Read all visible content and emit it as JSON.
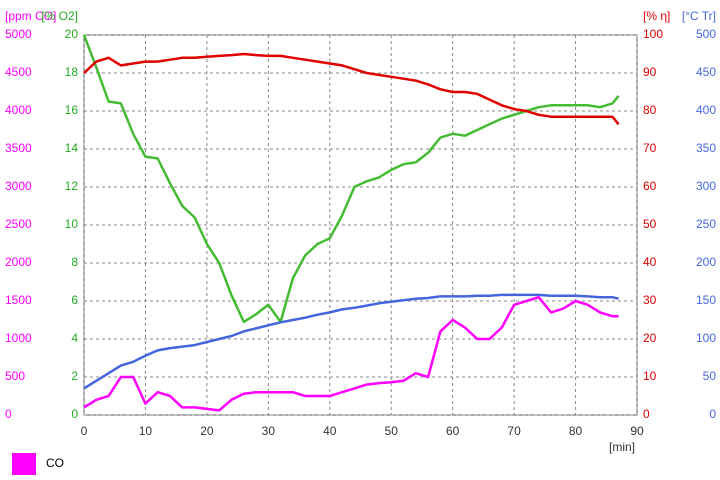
{
  "chart_data": {
    "type": "line",
    "x_label": "[min]",
    "xlim": [
      0,
      90
    ],
    "xticks": [
      0,
      10,
      20,
      30,
      40,
      50,
      60,
      70,
      80,
      90
    ],
    "x": [
      0,
      2,
      4,
      6,
      8,
      10,
      12,
      14,
      16,
      18,
      20,
      22,
      24,
      26,
      28,
      30,
      32,
      34,
      36,
      38,
      40,
      42,
      44,
      46,
      48,
      50,
      52,
      54,
      56,
      58,
      60,
      62,
      64,
      66,
      68,
      70,
      72,
      74,
      76,
      78,
      80,
      82,
      84,
      86,
      87
    ],
    "grid": true,
    "axes": [
      {
        "label": "[ppm CO]",
        "color": "#ff00ff",
        "side": "left-outer",
        "lim": [
          0,
          5000
        ],
        "ticks": [
          0,
          500,
          1000,
          1500,
          2000,
          2500,
          3000,
          3500,
          4000,
          4500,
          5000
        ]
      },
      {
        "label": "[% O2]",
        "color": "#22aa22",
        "side": "left-inner",
        "lim": [
          0,
          20
        ],
        "ticks": [
          0,
          2,
          4,
          6,
          8,
          10,
          12,
          14,
          16,
          18,
          20
        ]
      },
      {
        "label": "[% η]",
        "color": "#dd0000",
        "side": "right-inner",
        "lim": [
          0,
          100
        ],
        "ticks": [
          0,
          10,
          20,
          30,
          40,
          50,
          60,
          70,
          80,
          90,
          100
        ]
      },
      {
        "label": "[°C Tr]",
        "color": "#4466dd",
        "side": "right-outer",
        "lim": [
          0,
          500
        ],
        "ticks": [
          0,
          50,
          100,
          150,
          200,
          250,
          300,
          350,
          400,
          450,
          500
        ]
      }
    ],
    "legend": "bottom-left",
    "series": [
      {
        "color": "#44bb33",
        "axis": 1,
        "values": [
          20,
          18.3,
          16.5,
          16.4,
          14.8,
          13.6,
          13.5,
          12.2,
          11.0,
          10.4,
          9.0,
          8.0,
          6.3,
          4.9,
          5.3,
          5.8,
          4.9,
          7.2,
          8.4,
          9.0,
          9.3,
          10.5,
          12.0,
          12.3,
          12.5,
          12.9,
          13.2,
          13.3,
          13.8,
          14.6,
          14.8,
          14.7,
          15.0,
          15.3,
          15.6,
          15.8,
          16.0,
          16.2,
          16.3,
          16.3,
          16.3,
          16.3,
          16.2,
          16.4,
          16.8
        ]
      },
      {
        "color": "#e00000",
        "axis": 2,
        "values": [
          90,
          93,
          94,
          92,
          92.5,
          93,
          93,
          93.5,
          94,
          94,
          94.3,
          94.5,
          94.7,
          95,
          94.7,
          94.5,
          94.5,
          94,
          93.5,
          93,
          92.5,
          92,
          91,
          90,
          89.5,
          89,
          88.5,
          88,
          87,
          85.7,
          85,
          85,
          84.5,
          83,
          81.5,
          80.5,
          80,
          79,
          78.5,
          78.5,
          78.5,
          78.5,
          78.5,
          78.5,
          76.5
        ]
      },
      {
        "color": "#4466dd",
        "axis": 3,
        "values": [
          35,
          45,
          55,
          65,
          70,
          78,
          85,
          88,
          90,
          92,
          96,
          100,
          104,
          110,
          114,
          118,
          122,
          125,
          128,
          132,
          135,
          139,
          141,
          144,
          147,
          149,
          151,
          153,
          154,
          156,
          156,
          156,
          157,
          157,
          158,
          158,
          158,
          158,
          157,
          157,
          157,
          156,
          155,
          155,
          153
        ]
      },
      {
        "name": "CO",
        "color": "#ff00ff",
        "axis": 0,
        "values": [
          100,
          200,
          250,
          500,
          500,
          150,
          300,
          250,
          100,
          100,
          80,
          60,
          200,
          280,
          300,
          300,
          300,
          300,
          250,
          250,
          250,
          300,
          350,
          400,
          420,
          430,
          450,
          550,
          500,
          1100,
          1250,
          1150,
          1000,
          1000,
          1150,
          1450,
          1500,
          1550,
          1350,
          1400,
          1500,
          1450,
          1350,
          1300,
          1300
        ]
      }
    ]
  }
}
